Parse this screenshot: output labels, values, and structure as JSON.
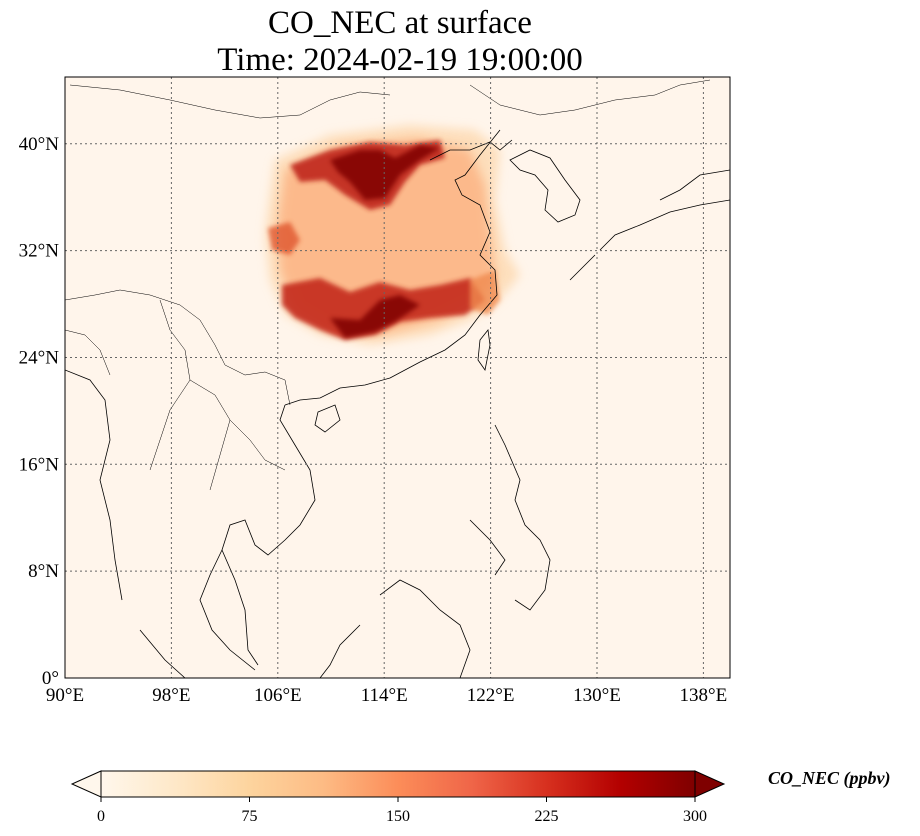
{
  "title_line1": "CO_NEC at surface",
  "title_line2": "Time: 2024-02-19 19:00:00",
  "map": {
    "lon_range": [
      90,
      140
    ],
    "lat_range": [
      0,
      45
    ],
    "lon_ticks": [
      90,
      98,
      106,
      114,
      122,
      130,
      138
    ],
    "lat_ticks": [
      0,
      8,
      16,
      24,
      32,
      40
    ],
    "lon_tick_labels": [
      "90°E",
      "98°E",
      "106°E",
      "114°E",
      "122°E",
      "130°E",
      "138°E"
    ],
    "lat_tick_labels": [
      "0°",
      "8°N",
      "16°N",
      "24°N",
      "32°N",
      "40°N"
    ],
    "gridlines": true,
    "colormap": "OrRd",
    "background_color": "#fff5eb"
  },
  "colorbar": {
    "label": "CO_NEC (ppbv)",
    "ticks": [
      0,
      75,
      150,
      225,
      300
    ],
    "tick_labels": [
      "0",
      "75",
      "150",
      "225",
      "300"
    ],
    "range": [
      0,
      300
    ],
    "extend": "both",
    "colors": [
      "#fff7ec",
      "#fee8c8",
      "#fdd49e",
      "#fdbb84",
      "#fc8d59",
      "#ef6548",
      "#d7301f",
      "#b30000",
      "#7f0000"
    ]
  }
}
